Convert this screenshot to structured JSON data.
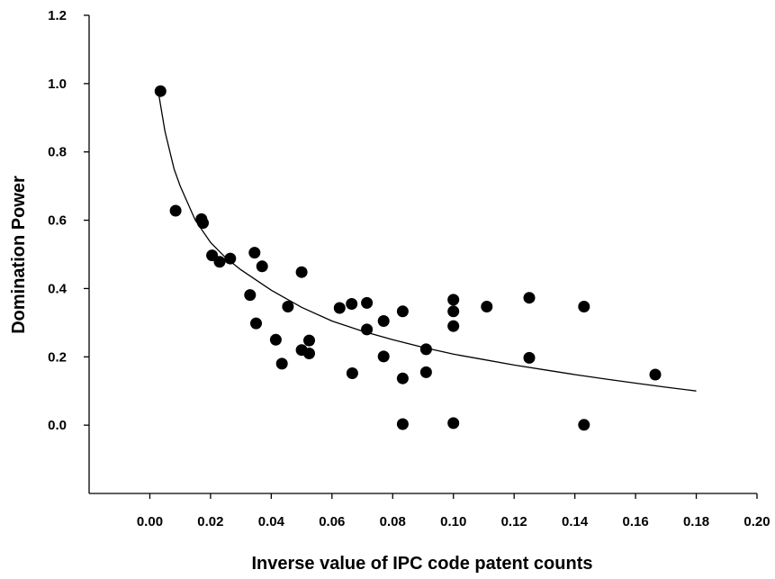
{
  "chart_data": {
    "type": "scatter",
    "xlabel": "Inverse value of IPC code patent counts",
    "ylabel": "Domination Power",
    "xlim": [
      -0.02,
      0.2
    ],
    "ylim": [
      -0.2,
      1.2
    ],
    "x_ticks": [
      "0.00",
      "0.02",
      "0.04",
      "0.06",
      "0.08",
      "0.10",
      "0.12",
      "0.14",
      "0.16",
      "0.18",
      "0.20"
    ],
    "y_ticks": [
      "0.0",
      "0.2",
      "0.4",
      "0.6",
      "0.8",
      "1.0",
      "1.2"
    ],
    "grid": false,
    "legend": "none",
    "colors": {
      "points": "#000000",
      "line": "#000000"
    },
    "series": [
      {
        "kind": "points",
        "points": [
          [
            0.0035,
            0.978
          ],
          [
            0.0085,
            0.628
          ],
          [
            0.017,
            0.603
          ],
          [
            0.0175,
            0.592
          ],
          [
            0.0205,
            0.497
          ],
          [
            0.023,
            0.478
          ],
          [
            0.0265,
            0.488
          ],
          [
            0.033,
            0.381
          ],
          [
            0.0345,
            0.505
          ],
          [
            0.035,
            0.298
          ],
          [
            0.037,
            0.465
          ],
          [
            0.0415,
            0.25
          ],
          [
            0.0435,
            0.18
          ],
          [
            0.0455,
            0.347
          ],
          [
            0.05,
            0.448
          ],
          [
            0.05,
            0.22
          ],
          [
            0.0525,
            0.21
          ],
          [
            0.0525,
            0.248
          ],
          [
            0.0625,
            0.343
          ],
          [
            0.0665,
            0.355
          ],
          [
            0.0667,
            0.152
          ],
          [
            0.0715,
            0.358
          ],
          [
            0.0715,
            0.28
          ],
          [
            0.077,
            0.305
          ],
          [
            0.077,
            0.201
          ],
          [
            0.0833,
            0.333
          ],
          [
            0.0833,
            0.137
          ],
          [
            0.0833,
            0.003
          ],
          [
            0.091,
            0.222
          ],
          [
            0.091,
            0.155
          ],
          [
            0.1,
            0.367
          ],
          [
            0.1,
            0.333
          ],
          [
            0.1,
            0.29
          ],
          [
            0.1,
            0.006
          ],
          [
            0.111,
            0.347
          ],
          [
            0.125,
            0.373
          ],
          [
            0.125,
            0.197
          ],
          [
            0.143,
            0.347
          ],
          [
            0.143,
            0.001
          ],
          [
            0.1665,
            0.148
          ]
        ]
      },
      {
        "kind": "fit-line",
        "points": [
          [
            0.003,
            0.965
          ],
          [
            0.005,
            0.86
          ],
          [
            0.008,
            0.75
          ],
          [
            0.01,
            0.7
          ],
          [
            0.015,
            0.6
          ],
          [
            0.02,
            0.535
          ],
          [
            0.025,
            0.49
          ],
          [
            0.03,
            0.455
          ],
          [
            0.04,
            0.395
          ],
          [
            0.05,
            0.345
          ],
          [
            0.06,
            0.305
          ],
          [
            0.07,
            0.275
          ],
          [
            0.08,
            0.25
          ],
          [
            0.09,
            0.228
          ],
          [
            0.1,
            0.208
          ],
          [
            0.11,
            0.192
          ],
          [
            0.12,
            0.176
          ],
          [
            0.13,
            0.162
          ],
          [
            0.14,
            0.148
          ],
          [
            0.15,
            0.135
          ],
          [
            0.16,
            0.123
          ],
          [
            0.17,
            0.111
          ],
          [
            0.18,
            0.1
          ]
        ]
      }
    ]
  }
}
